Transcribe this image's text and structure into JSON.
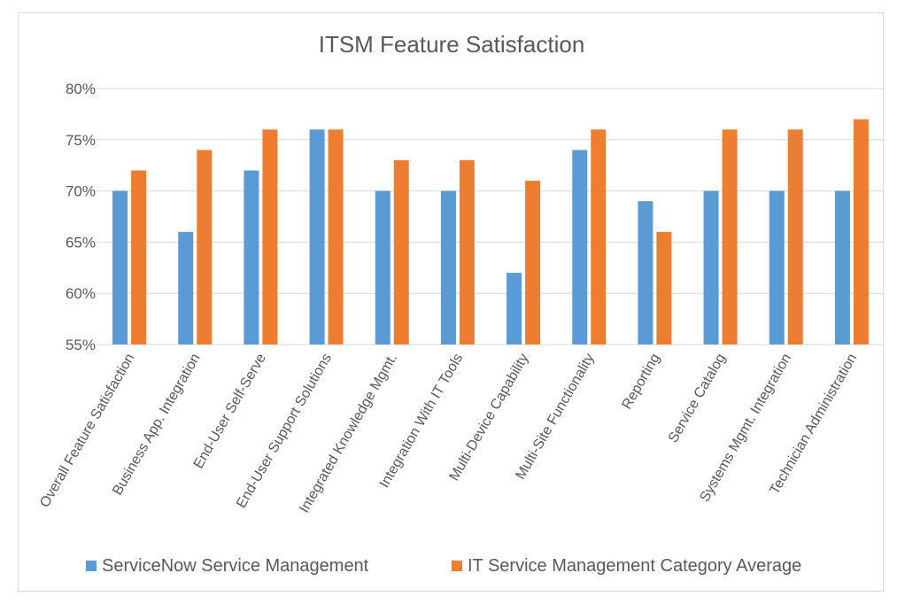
{
  "chart_data": {
    "type": "bar",
    "title": "ITSM Feature Satisfaction",
    "xlabel": "",
    "ylabel": "",
    "ylim": [
      55,
      80
    ],
    "yticks": [
      55,
      60,
      65,
      70,
      75,
      80
    ],
    "ytick_labels": [
      "55%",
      "60%",
      "65%",
      "70%",
      "75%",
      "80%"
    ],
    "grid": true,
    "legend_position": "bottom",
    "categories": [
      "Overall Feature Satisfaction",
      "Business App. Integration",
      "End-User Self-Serve",
      "End-User Support Solutions",
      "Integrated Knowledge Mgmt.",
      "Integration With IT Tools",
      "Multi-Device Capability",
      "Multi-Site Functionality",
      "Reporting",
      "Service Catalog",
      "Systems Mgmt. Integration",
      "Technician Administration"
    ],
    "series": [
      {
        "name": "ServiceNow Service Management",
        "color": "#5B9BD5",
        "values": [
          70,
          66,
          72,
          76,
          70,
          70,
          62,
          74,
          69,
          70,
          70,
          70
        ]
      },
      {
        "name": "IT Service Management Category Average",
        "color": "#ED7D31",
        "values": [
          72,
          74,
          76,
          76,
          73,
          73,
          71,
          76,
          66,
          76,
          76,
          77
        ]
      }
    ]
  }
}
